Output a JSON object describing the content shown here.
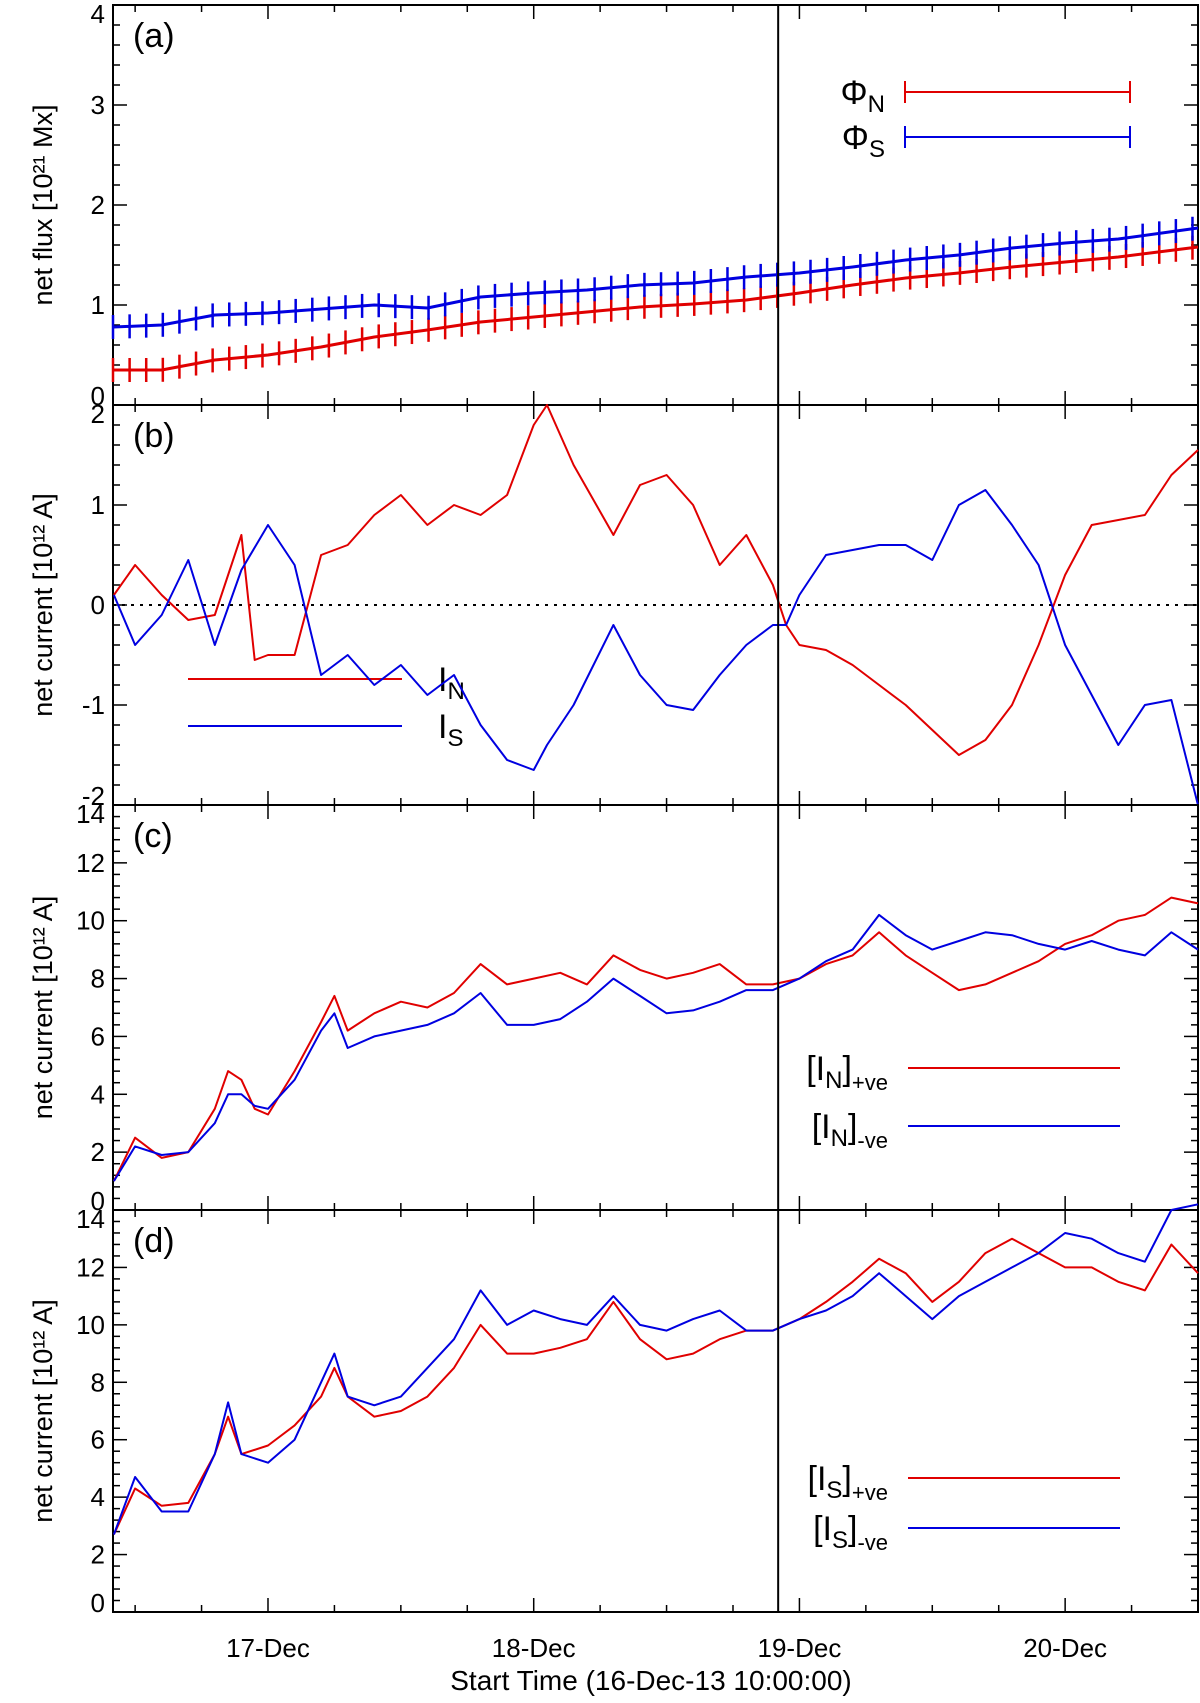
{
  "chart_data": [
    {
      "panel": "(a)",
      "type": "line",
      "ylabel": "net flux [10²¹ Mx]",
      "ylim": [
        0,
        4
      ],
      "yticks": [
        0,
        1,
        2,
        3,
        4
      ],
      "xlim_days": [
        16.4167,
        20.5
      ],
      "series": [
        {
          "name": "Φ_N",
          "legend_main": "Φ",
          "legend_sub": "N",
          "color": "#e00000",
          "markers": "plus",
          "x": [
            16.42,
            16.6,
            16.8,
            17.0,
            17.2,
            17.4,
            17.6,
            17.8,
            18.0,
            18.2,
            18.4,
            18.6,
            18.8,
            19.0,
            19.2,
            19.4,
            19.6,
            19.8,
            20.0,
            20.2,
            20.5
          ],
          "y": [
            0.35,
            0.35,
            0.45,
            0.5,
            0.58,
            0.68,
            0.75,
            0.83,
            0.88,
            0.93,
            0.98,
            1.01,
            1.05,
            1.12,
            1.2,
            1.27,
            1.32,
            1.38,
            1.43,
            1.48,
            1.58
          ]
        },
        {
          "name": "Φ_S",
          "legend_main": "Φ",
          "legend_sub": "S",
          "color": "#0000e0",
          "markers": "plus",
          "x": [
            16.42,
            16.6,
            16.8,
            17.0,
            17.2,
            17.4,
            17.6,
            17.8,
            18.0,
            18.2,
            18.4,
            18.6,
            18.8,
            19.0,
            19.2,
            19.4,
            19.6,
            19.8,
            20.0,
            20.2,
            20.5
          ],
          "y": [
            0.78,
            0.8,
            0.9,
            0.92,
            0.96,
            1.0,
            0.97,
            1.08,
            1.12,
            1.15,
            1.2,
            1.22,
            1.28,
            1.32,
            1.38,
            1.45,
            1.5,
            1.57,
            1.62,
            1.66,
            1.77
          ]
        }
      ]
    },
    {
      "panel": "(b)",
      "type": "line",
      "ylabel": "net current [10¹² A]",
      "ylim": [
        -2,
        2
      ],
      "yticks": [
        -2,
        -1,
        0,
        1,
        2
      ],
      "zero_line": true,
      "xlim_days": [
        16.4167,
        20.5
      ],
      "series": [
        {
          "name": "I_N",
          "legend_main": "I",
          "legend_sub": "N",
          "color": "#e00000",
          "x": [
            16.42,
            16.5,
            16.6,
            16.7,
            16.8,
            16.9,
            16.95,
            17.0,
            17.1,
            17.2,
            17.3,
            17.4,
            17.5,
            17.6,
            17.7,
            17.8,
            17.9,
            18.0,
            18.05,
            18.15,
            18.3,
            18.4,
            18.5,
            18.6,
            18.7,
            18.8,
            18.9,
            18.95,
            19.0,
            19.1,
            19.2,
            19.3,
            19.4,
            19.5,
            19.6,
            19.7,
            19.8,
            19.9,
            20.0,
            20.1,
            20.2,
            20.3,
            20.4,
            20.5
          ],
          "y": [
            0.1,
            0.4,
            0.1,
            -0.15,
            -0.1,
            0.7,
            -0.55,
            -0.5,
            -0.5,
            0.5,
            0.6,
            0.9,
            1.1,
            0.8,
            1.0,
            0.9,
            1.1,
            1.8,
            2.0,
            1.4,
            0.7,
            1.2,
            1.3,
            1.0,
            0.4,
            0.7,
            0.2,
            -0.2,
            -0.4,
            -0.45,
            -0.6,
            -0.8,
            -1.0,
            -1.25,
            -1.5,
            -1.35,
            -1.0,
            -0.4,
            0.3,
            0.8,
            0.85,
            0.9,
            1.3,
            1.55
          ]
        },
        {
          "name": "I_S",
          "legend_main": "I",
          "legend_sub": "S",
          "color": "#0000e0",
          "x": [
            16.42,
            16.5,
            16.6,
            16.7,
            16.8,
            16.9,
            17.0,
            17.1,
            17.2,
            17.3,
            17.4,
            17.5,
            17.6,
            17.7,
            17.8,
            17.9,
            18.0,
            18.05,
            18.15,
            18.3,
            18.4,
            18.5,
            18.6,
            18.7,
            18.8,
            18.9,
            18.95,
            19.0,
            19.1,
            19.2,
            19.3,
            19.4,
            19.5,
            19.6,
            19.7,
            19.8,
            19.9,
            20.0,
            20.1,
            20.2,
            20.3,
            20.4,
            20.5
          ],
          "y": [
            0.1,
            -0.4,
            -0.1,
            0.45,
            -0.4,
            0.35,
            0.8,
            0.4,
            -0.7,
            -0.5,
            -0.8,
            -0.6,
            -0.9,
            -0.7,
            -1.2,
            -1.55,
            -1.65,
            -1.4,
            -1.0,
            -0.2,
            -0.7,
            -1.0,
            -1.05,
            -0.7,
            -0.4,
            -0.2,
            -0.2,
            0.1,
            0.5,
            0.55,
            0.6,
            0.6,
            0.45,
            1.0,
            1.15,
            0.8,
            0.4,
            -0.4,
            -0.9,
            -1.4,
            -1.0,
            -0.95,
            -2.0
          ]
        }
      ]
    },
    {
      "panel": "(c)",
      "type": "line",
      "ylabel": "net current [10¹² A]",
      "ylim": [
        0,
        14
      ],
      "yticks": [
        0,
        2,
        4,
        6,
        8,
        10,
        12,
        14
      ],
      "xlim_days": [
        16.4167,
        20.5
      ],
      "series": [
        {
          "name": "[I_N]+ve",
          "legend_main": "[I",
          "legend_sub": "N",
          "legend_end": "]",
          "legend_suffix": "+ve",
          "color": "#e00000",
          "x": [
            16.42,
            16.5,
            16.6,
            16.7,
            16.8,
            16.85,
            16.9,
            16.95,
            17.0,
            17.1,
            17.2,
            17.25,
            17.3,
            17.4,
            17.5,
            17.6,
            17.7,
            17.8,
            17.9,
            18.0,
            18.1,
            18.2,
            18.3,
            18.4,
            18.5,
            18.6,
            18.7,
            18.8,
            18.9,
            19.0,
            19.1,
            19.2,
            19.3,
            19.4,
            19.5,
            19.6,
            19.7,
            19.8,
            19.9,
            20.0,
            20.1,
            20.2,
            20.3,
            20.4,
            20.5
          ],
          "y": [
            1.0,
            2.5,
            1.8,
            2.0,
            3.5,
            4.8,
            4.5,
            3.5,
            3.3,
            4.8,
            6.5,
            7.4,
            6.2,
            6.8,
            7.2,
            7.0,
            7.5,
            8.5,
            7.8,
            8.0,
            8.2,
            7.8,
            8.8,
            8.3,
            8.0,
            8.2,
            8.5,
            7.8,
            7.8,
            8.0,
            8.5,
            8.8,
            9.6,
            8.8,
            8.2,
            7.6,
            7.8,
            8.2,
            8.6,
            9.2,
            9.5,
            10.0,
            10.2,
            10.8,
            10.6
          ]
        },
        {
          "name": "[I_N]-ve",
          "legend_main": "[I",
          "legend_sub": "N",
          "legend_end": "]",
          "legend_suffix": "-ve",
          "color": "#0000e0",
          "x": [
            16.42,
            16.5,
            16.6,
            16.7,
            16.8,
            16.85,
            16.9,
            16.95,
            17.0,
            17.1,
            17.2,
            17.25,
            17.3,
            17.4,
            17.5,
            17.6,
            17.7,
            17.8,
            17.9,
            18.0,
            18.1,
            18.2,
            18.3,
            18.4,
            18.5,
            18.6,
            18.7,
            18.8,
            18.9,
            19.0,
            19.1,
            19.2,
            19.3,
            19.4,
            19.5,
            19.6,
            19.7,
            19.8,
            19.9,
            20.0,
            20.1,
            20.2,
            20.3,
            20.4,
            20.5
          ],
          "y": [
            1.0,
            2.2,
            1.9,
            2.0,
            3.0,
            4.0,
            4.0,
            3.6,
            3.5,
            4.5,
            6.2,
            6.8,
            5.6,
            6.0,
            6.2,
            6.4,
            6.8,
            7.5,
            6.4,
            6.4,
            6.6,
            7.2,
            8.0,
            7.4,
            6.8,
            6.9,
            7.2,
            7.6,
            7.6,
            8.0,
            8.6,
            9.0,
            10.2,
            9.5,
            9.0,
            9.3,
            9.6,
            9.5,
            9.2,
            9.0,
            9.3,
            9.0,
            8.8,
            9.6,
            9.0
          ]
        }
      ]
    },
    {
      "panel": "(d)",
      "type": "line",
      "ylabel": "net current [10¹² A]",
      "ylim": [
        0,
        14
      ],
      "yticks": [
        0,
        2,
        4,
        6,
        8,
        10,
        12,
        14
      ],
      "xlim_days": [
        16.4167,
        20.5
      ],
      "series": [
        {
          "name": "[I_S]+ve",
          "legend_main": "[I",
          "legend_sub": "S",
          "legend_end": "]",
          "legend_suffix": "+ve",
          "color": "#e00000",
          "x": [
            16.42,
            16.5,
            16.6,
            16.7,
            16.8,
            16.85,
            16.9,
            17.0,
            17.1,
            17.2,
            17.25,
            17.3,
            17.4,
            17.5,
            17.6,
            17.7,
            17.8,
            17.9,
            18.0,
            18.1,
            18.2,
            18.3,
            18.4,
            18.5,
            18.6,
            18.7,
            18.8,
            18.9,
            19.0,
            19.1,
            19.2,
            19.3,
            19.4,
            19.5,
            19.6,
            19.7,
            19.8,
            19.9,
            20.0,
            20.1,
            20.2,
            20.3,
            20.4,
            20.5
          ],
          "y": [
            2.7,
            4.3,
            3.7,
            3.8,
            5.5,
            6.8,
            5.5,
            5.8,
            6.5,
            7.5,
            8.5,
            7.5,
            6.8,
            7.0,
            7.5,
            8.5,
            10.0,
            9.0,
            9.0,
            9.2,
            9.5,
            10.8,
            9.5,
            8.8,
            9.0,
            9.5,
            9.8,
            9.8,
            10.2,
            10.8,
            11.5,
            12.3,
            11.8,
            10.8,
            11.5,
            12.5,
            13.0,
            12.5,
            12.0,
            12.0,
            11.5,
            11.2,
            12.8,
            11.8
          ]
        },
        {
          "name": "[I_S]-ve",
          "legend_main": "[I",
          "legend_sub": "S",
          "legend_end": "]",
          "legend_suffix": "-ve",
          "color": "#0000e0",
          "x": [
            16.42,
            16.5,
            16.6,
            16.7,
            16.8,
            16.85,
            16.9,
            17.0,
            17.1,
            17.2,
            17.25,
            17.3,
            17.4,
            17.5,
            17.6,
            17.7,
            17.8,
            17.9,
            18.0,
            18.1,
            18.2,
            18.3,
            18.4,
            18.5,
            18.6,
            18.7,
            18.8,
            18.9,
            19.0,
            19.1,
            19.2,
            19.3,
            19.4,
            19.5,
            19.6,
            19.7,
            19.8,
            19.9,
            20.0,
            20.1,
            20.2,
            20.3,
            20.4,
            20.5
          ],
          "y": [
            2.7,
            4.7,
            3.5,
            3.5,
            5.5,
            7.3,
            5.5,
            5.2,
            6.0,
            8.0,
            9.0,
            7.5,
            7.2,
            7.5,
            8.5,
            9.5,
            11.2,
            10.0,
            10.5,
            10.2,
            10.0,
            11.0,
            10.0,
            9.8,
            10.2,
            10.5,
            9.8,
            9.8,
            10.2,
            10.5,
            11.0,
            11.8,
            11.0,
            10.2,
            11.0,
            11.5,
            12.0,
            12.5,
            13.2,
            13.0,
            12.5,
            12.2,
            14.0,
            14.2
          ]
        }
      ]
    }
  ],
  "x_axis": {
    "label": "Start Time (16-Dec-13 10:00:00)",
    "ticks": [
      {
        "day": 17,
        "label": "17-Dec"
      },
      {
        "day": 18,
        "label": "18-Dec"
      },
      {
        "day": 19,
        "label": "19-Dec"
      },
      {
        "day": 20,
        "label": "20-Dec"
      }
    ],
    "vertical_marker_day": 18.92
  },
  "colors": {
    "red": "#e00000",
    "blue": "#0000e0",
    "axis": "#000000"
  }
}
